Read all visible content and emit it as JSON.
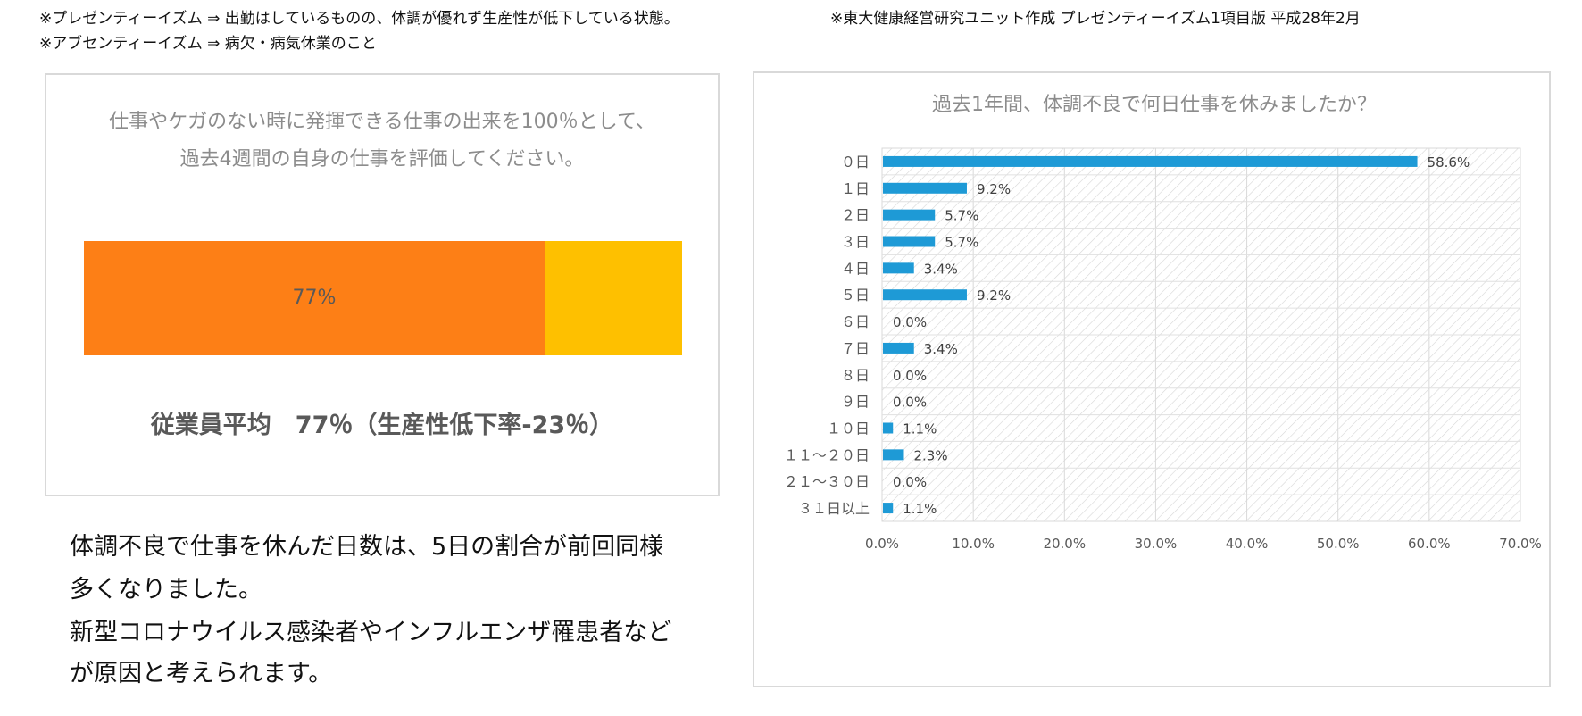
{
  "notes": {
    "presenteeism": "※プレゼンティーイズム ⇒ 出勤はしているものの、体調が優れず生産性が低下している状態。",
    "absenteeism": "※アブセンティーイズム ⇒ 病欠・病気休業のこと",
    "source": "※東大健康経営研究ユニット作成 プレゼンティーイズム1項目版 平成28年2月"
  },
  "left_panel": {
    "question_line1": "仕事やケガのない時に発揮できる仕事の出来を100％として、",
    "question_line2": "過去4週間の自身の仕事を評価してください。",
    "bar_value": 77,
    "bar_label": "77%",
    "colors": {
      "actual": "#fd7f16",
      "loss": "#fec000"
    },
    "average_text": "従業員平均　77％（生産性低下率-23％）"
  },
  "comment": {
    "line1": "体調不良で仕事を休んだ日数は、5日の割合が前回同様",
    "line2": "多くなりました。",
    "line3": "新型コロナウイルス感染者やインフルエンザ罹患者など",
    "line4": "が原因と考えられます。"
  },
  "chart_data": {
    "type": "bar",
    "orientation": "horizontal",
    "title": "過去1年間、体調不良で何日仕事を休みましたか？",
    "categories": [
      "０日",
      "１日",
      "２日",
      "３日",
      "４日",
      "５日",
      "６日",
      "７日",
      "８日",
      "９日",
      "１０日",
      "１１～２０日",
      "２１～３０日",
      "３１日以上"
    ],
    "values": [
      58.6,
      9.2,
      5.7,
      5.7,
      3.4,
      9.2,
      0.0,
      3.4,
      0.0,
      0.0,
      1.1,
      2.3,
      0.0,
      1.1
    ],
    "value_labels": [
      "58.6%",
      "9.2%",
      "5.7%",
      "5.7%",
      "3.4%",
      "9.2%",
      "0.0%",
      "3.4%",
      "0.0%",
      "0.0%",
      "1.1%",
      "2.3%",
      "0.0%",
      "1.1%"
    ],
    "x_ticks": [
      "0.0%",
      "10.0%",
      "20.0%",
      "30.0%",
      "40.0%",
      "50.0%",
      "60.0%",
      "70.0%"
    ],
    "xlim": [
      0,
      70
    ],
    "grid": true,
    "legend": "none",
    "bar_color": "#1e9ad6"
  }
}
